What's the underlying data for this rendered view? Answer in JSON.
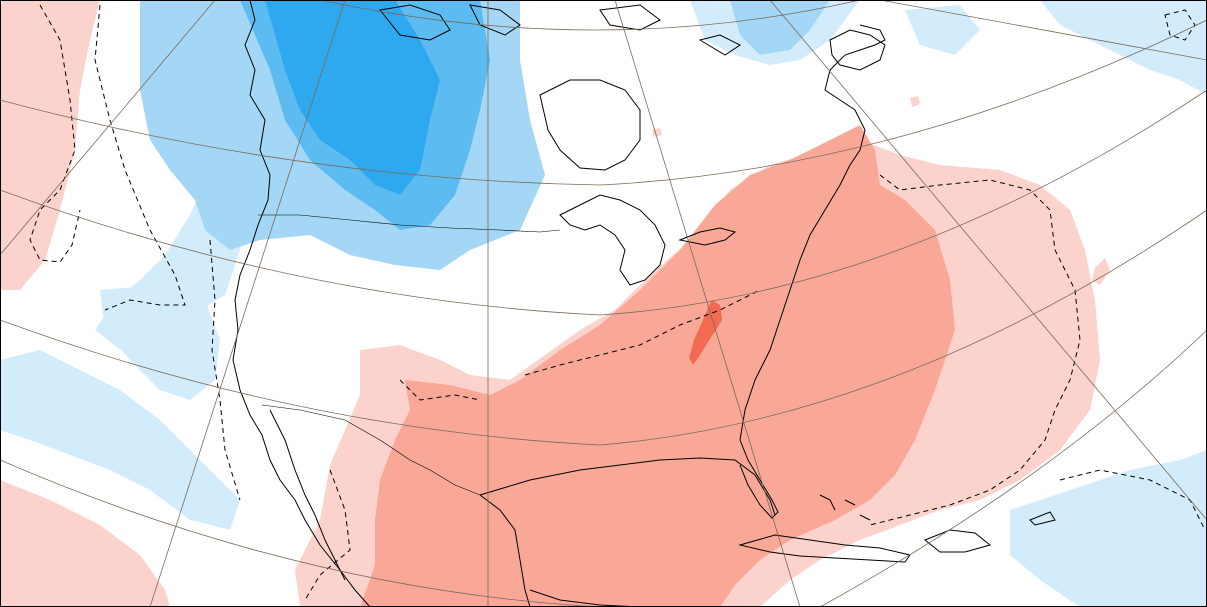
{
  "map": {
    "projection": "polar-stereographic",
    "field": "anomaly",
    "region": "North America",
    "colors": {
      "warm_light": "#fcd2cd",
      "warm_medium": "#f9a898",
      "warm_strong": "#f26a50",
      "cool_light": "#d3ecfb",
      "cool_medium": "#a4d6f6",
      "cool_strong": "#5cbcf2",
      "cool_deep": "#2ea8ee",
      "coastline": "#000000",
      "graticule": "#7a6a58",
      "frame": "#000000"
    },
    "labels_text": []
  }
}
